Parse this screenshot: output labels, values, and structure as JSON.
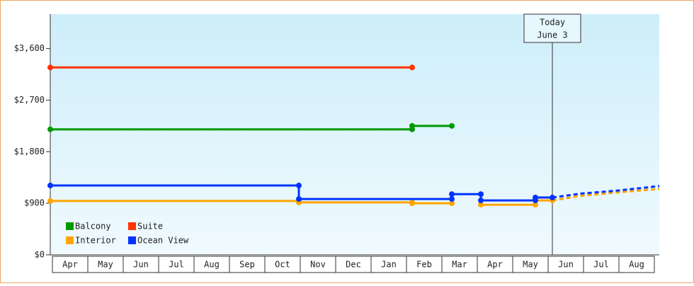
{
  "chart_data": {
    "type": "step-line",
    "categories": [
      "Apr",
      "May",
      "Jun",
      "Jul",
      "Aug",
      "Sep",
      "Oct",
      "Nov",
      "Dec",
      "Jan",
      "Feb",
      "Mar",
      "Apr",
      "May",
      "Jun",
      "Jul",
      "Aug"
    ],
    "xlim": [
      0,
      17.2
    ],
    "ylim": [
      0,
      4200
    ],
    "yticks": [
      {
        "value": 0,
        "label": "$0"
      },
      {
        "value": 900,
        "label": "$900"
      },
      {
        "value": 1800,
        "label": "$1,800"
      },
      {
        "value": 2700,
        "label": "$2,700"
      },
      {
        "value": 3600,
        "label": "$3,600"
      }
    ],
    "today": {
      "x": 14.18,
      "label": "Today",
      "date": "June 3"
    },
    "series": [
      {
        "name": "Balcony",
        "color": "#009900",
        "x": [
          0,
          10.22,
          10.22,
          11.34
        ],
        "values": [
          2190,
          2190,
          2250,
          2250
        ]
      },
      {
        "name": "Suite",
        "color": "#ff3300",
        "x": [
          0,
          10.22
        ],
        "values": [
          3270,
          3270
        ]
      },
      {
        "name": "Interior",
        "color": "#ffa500",
        "x": [
          0,
          7.02,
          7.02,
          10.22,
          10.22,
          11.34,
          11.34,
          12.16,
          13.7,
          13.7,
          14.18
        ],
        "values": [
          940,
          940,
          915,
          915,
          900,
          900,
          null,
          875,
          875,
          950,
          950
        ],
        "forecast_x": [
          14.18,
          15,
          16,
          17.2
        ],
        "forecast_values": [
          950,
          1030,
          1090,
          1150
        ]
      },
      {
        "name": "Ocean View",
        "color": "#0033ff",
        "x": [
          0,
          7.02,
          7.02,
          11.34,
          11.34,
          12.16,
          12.16,
          13.7,
          13.7,
          14.18
        ],
        "values": [
          1210,
          1210,
          975,
          975,
          1060,
          1060,
          950,
          950,
          1000,
          1000
        ],
        "forecast_x": [
          14.18,
          15,
          16,
          17.2
        ],
        "forecast_values": [
          1000,
          1070,
          1120,
          1200
        ]
      }
    ]
  }
}
